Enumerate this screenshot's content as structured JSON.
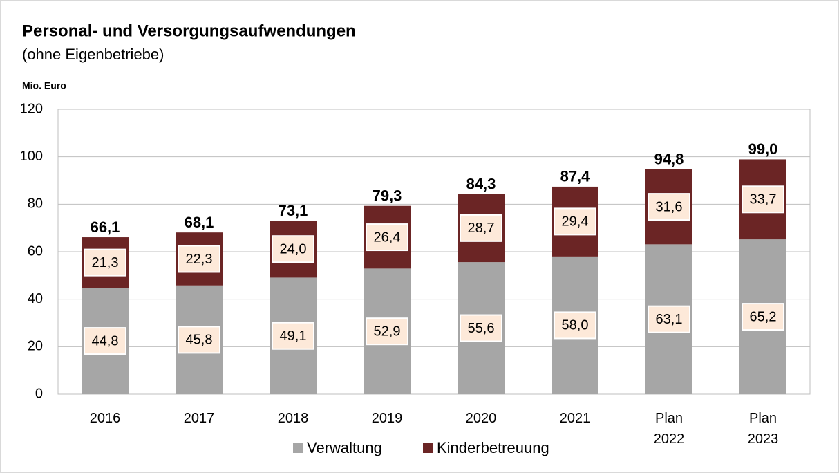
{
  "chart_data": {
    "type": "stacked_bar",
    "title": "Personal- und Versorgungsaufwendungen",
    "subtitle": "(ohne Eigenbetriebe)",
    "y_label": "Mio. Euro",
    "categories": [
      "2016",
      "2017",
      "2018",
      "2019",
      "2020",
      "2021",
      "Plan 2022",
      "Plan 2023"
    ],
    "series": [
      {
        "name": "Verwaltung",
        "color": "#a6a6a6",
        "values": [
          44.8,
          45.8,
          49.1,
          52.9,
          55.6,
          58.0,
          63.1,
          65.2
        ],
        "value_labels": [
          "44,8",
          "45,8",
          "49,1",
          "52,9",
          "55,6",
          "58,0",
          "63,1",
          "65,2"
        ]
      },
      {
        "name": "Kinderbetreuung",
        "color": "#6b2525",
        "values": [
          21.3,
          22.3,
          24.0,
          26.4,
          28.7,
          29.4,
          31.6,
          33.7
        ],
        "value_labels": [
          "21,3",
          "22,3",
          "24,0",
          "26,4",
          "28,7",
          "29,4",
          "31,6",
          "33,7"
        ]
      }
    ],
    "totals": [
      66.1,
      68.1,
      73.1,
      79.3,
      84.3,
      87.4,
      94.8,
      99.0
    ],
    "total_labels": [
      "66,1",
      "68,1",
      "73,1",
      "79,3",
      "84,3",
      "87,4",
      "94,8",
      "99,0"
    ],
    "ylim": [
      0,
      120
    ],
    "yticks": [
      0,
      20,
      40,
      60,
      80,
      100,
      120
    ],
    "grid": true,
    "legend": "bottom"
  }
}
